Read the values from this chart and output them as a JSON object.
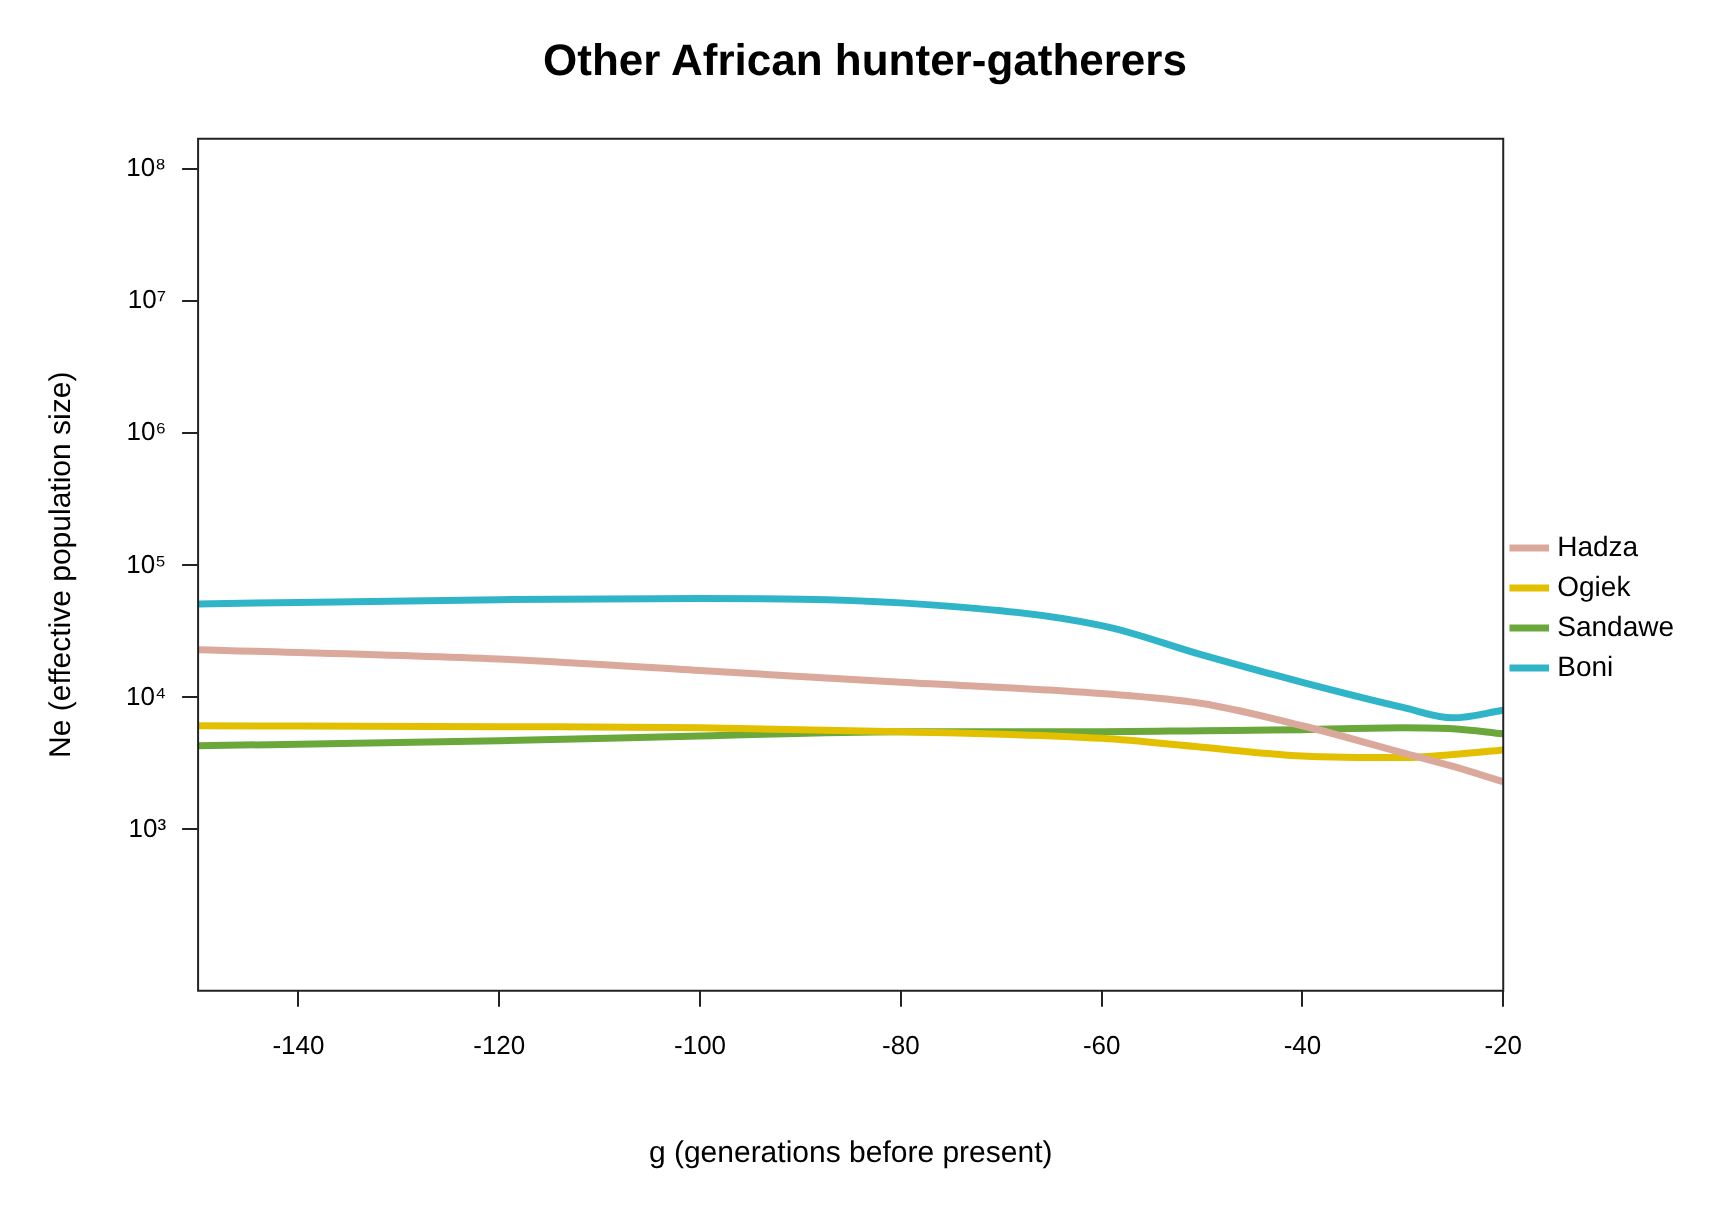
{
  "chart_data": {
    "type": "line",
    "title": "Other African hunter-gatherers",
    "xlabel": "g (generations before present)",
    "ylabel": "Ne (effective population size)",
    "x": [
      -150,
      -120,
      -100,
      -80,
      -60,
      -50,
      -40,
      -30,
      -25,
      -20
    ],
    "series": [
      {
        "name": "Hadza",
        "color": "#dba89c",
        "values": [
          23000,
          19500,
          16000,
          13000,
          10700,
          9000,
          6100,
          3800,
          3000,
          2300
        ]
      },
      {
        "name": "Ogiek",
        "color": "#e2c000",
        "values": [
          6100,
          6000,
          5900,
          5500,
          4900,
          4200,
          3600,
          3500,
          3700,
          4000
        ]
      },
      {
        "name": "Sandawe",
        "color": "#6aa83c",
        "values": [
          4300,
          4700,
          5100,
          5500,
          5500,
          5600,
          5700,
          5900,
          5800,
          5300
        ]
      },
      {
        "name": "Boni",
        "color": "#30b5c8",
        "values": [
          51000,
          55000,
          56000,
          52000,
          35000,
          21000,
          13000,
          8400,
          7000,
          8000
        ]
      }
    ],
    "log": "y",
    "xlim": [
      -150,
      -20
    ],
    "xticks": [
      -140,
      -120,
      -100,
      -80,
      -60,
      -40,
      -20
    ],
    "ylim": [
      60,
      170000000
    ],
    "yticks": [
      {
        "value": 1000,
        "label": "10³"
      },
      {
        "value": 10000,
        "label": "10⁴"
      },
      {
        "value": 100000,
        "label": "10⁵"
      },
      {
        "value": 1000000,
        "label": "10⁶"
      },
      {
        "value": 10000000,
        "label": "10⁷"
      },
      {
        "value": 100000000,
        "label": "10⁸"
      }
    ],
    "grid": false,
    "legend": "right",
    "marker": "none",
    "line_style": "solid"
  }
}
